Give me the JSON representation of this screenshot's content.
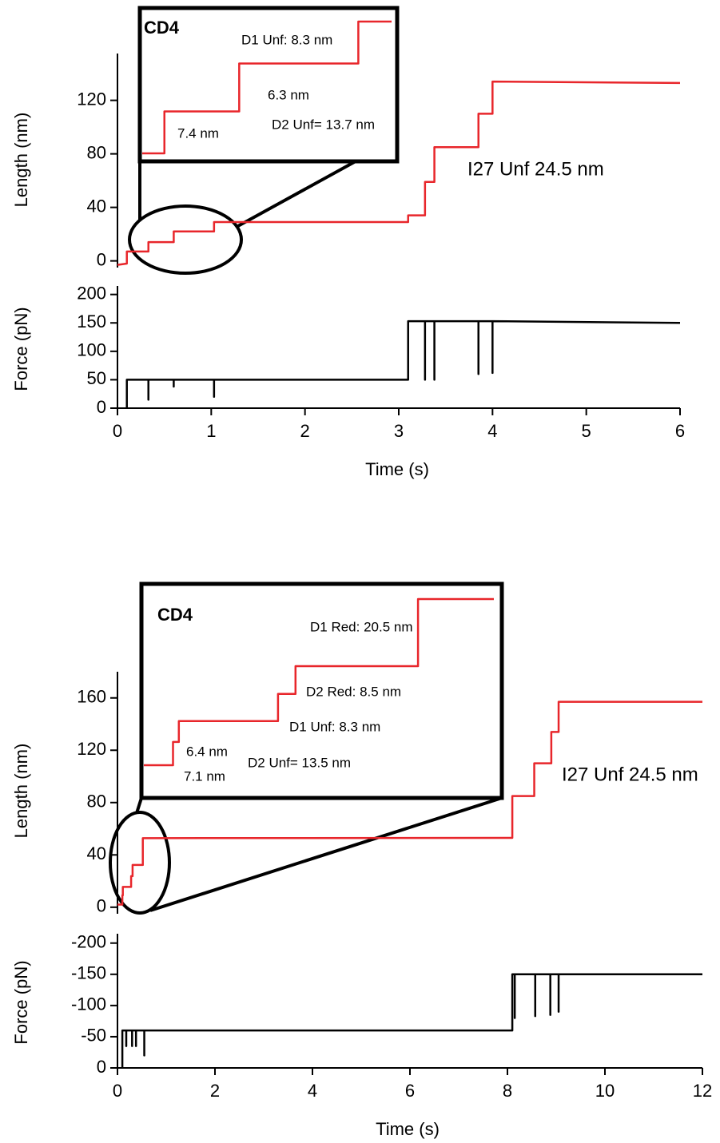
{
  "chart_data": [
    {
      "type": "line",
      "ylabel": "Length (nm)",
      "color": "#e8262b",
      "xlim": [
        0,
        6
      ],
      "ylim": [
        -5,
        155
      ],
      "yticks": [
        0,
        40,
        80,
        120
      ],
      "x": [
        0,
        0.1,
        0.1,
        0.33,
        0.33,
        0.6,
        0.6,
        1.03,
        1.03,
        3.1,
        3.1,
        3.28,
        3.28,
        3.38,
        3.38,
        3.85,
        3.85,
        4.0,
        4.0,
        6.0
      ],
      "values": [
        -3,
        -2,
        7,
        7,
        14,
        14,
        22,
        22,
        29,
        29,
        34,
        34,
        59,
        59,
        85,
        85,
        110,
        110,
        134,
        133
      ],
      "annotations": [
        "I27 Unf 24.5 nm"
      ],
      "inset": {
        "title": "CD4",
        "x": [
          0.25,
          0.33,
          0.33,
          0.6,
          0.6,
          1.03,
          1.03,
          1.15
        ],
        "values": [
          7,
          7,
          14,
          14,
          22,
          22,
          29,
          29
        ],
        "annotations": [
          "D1 Unf: 8.3 nm",
          "6.3 nm",
          "D2 Unf= 13.7 nm",
          "7.4 nm"
        ]
      }
    },
    {
      "type": "line",
      "ylabel": "Force (pN)",
      "xlabel": "Time (s)",
      "color": "#000000",
      "xlim": [
        0,
        6
      ],
      "xticks": [
        0,
        1,
        2,
        3,
        4,
        5,
        6
      ],
      "ylim": [
        0,
        215
      ],
      "yticks": [
        0,
        50,
        100,
        150,
        200
      ],
      "x": [
        0.1,
        0.1,
        0.33,
        0.33,
        0.33,
        0.6,
        0.6,
        0.6,
        1.03,
        1.03,
        1.03,
        3.1,
        3.1,
        3.28,
        3.28,
        3.28,
        3.38,
        3.38,
        3.38,
        3.85,
        3.85,
        3.85,
        4.0,
        4.0,
        4.0,
        6.0
      ],
      "values": [
        0,
        50,
        50,
        15,
        50,
        50,
        38,
        50,
        50,
        20,
        50,
        50,
        153,
        153,
        50,
        153,
        153,
        50,
        153,
        153,
        60,
        153,
        153,
        62,
        153,
        150
      ]
    },
    {
      "type": "line",
      "ylabel": "Length (nm)",
      "color": "#e8262b",
      "xlim": [
        0,
        12
      ],
      "ylim": [
        -5,
        180
      ],
      "yticks": [
        0,
        40,
        80,
        120,
        160
      ],
      "x": [
        0,
        0.1,
        0.1,
        0.11,
        0.11,
        0.28,
        0.28,
        0.31,
        0.31,
        0.52,
        0.52,
        8.1,
        8.1,
        8.55,
        8.55,
        8.9,
        8.9,
        9.05,
        9.05,
        12
      ],
      "values": [
        2,
        2,
        9.1,
        9.1,
        15.5,
        15.5,
        23.8,
        23.8,
        32.3,
        32.3,
        52.8,
        53,
        85,
        85,
        110,
        110,
        134,
        134,
        157,
        157
      ],
      "annotations": [
        "I27 Unf 24.5 nm"
      ],
      "inset": {
        "title": "CD4",
        "x": [
          0.05,
          0.1,
          0.1,
          0.11,
          0.11,
          0.28,
          0.28,
          0.31,
          0.31,
          0.52,
          0.52,
          0.65
        ],
        "values": [
          2,
          2,
          9.1,
          9.1,
          15.5,
          15.5,
          23.8,
          23.8,
          32.3,
          32.3,
          52.8,
          52.8
        ],
        "annotations": [
          "D1 Red: 20.5 nm",
          "D2 Red: 8.5 nm",
          "D1 Unf: 8.3 nm",
          "6.4 nm",
          "D2 Unf= 13.5 nm",
          "7.1 nm"
        ]
      }
    },
    {
      "type": "line",
      "ylabel": "Force (pN)",
      "xlabel": "Time (s)",
      "color": "#000000",
      "xlim": [
        0,
        12
      ],
      "xticks": [
        0,
        2,
        4,
        6,
        8,
        10,
        12
      ],
      "ylim": [
        0,
        -215
      ],
      "yticks": [
        0,
        -50,
        -100,
        -150,
        -200
      ],
      "x": [
        0.1,
        0.1,
        0.18,
        0.18,
        0.18,
        0.3,
        0.3,
        0.3,
        0.38,
        0.38,
        0.38,
        0.55,
        0.55,
        0.55,
        8.1,
        8.1,
        8.15,
        8.15,
        8.15,
        8.57,
        8.57,
        8.57,
        8.88,
        8.88,
        8.88,
        9.05,
        9.05,
        9.05,
        12
      ],
      "values": [
        0,
        -60,
        -60,
        -35,
        -60,
        -60,
        -35,
        -60,
        -60,
        -35,
        -60,
        -60,
        -20,
        -60,
        -60,
        -150,
        -150,
        -80,
        -150,
        -150,
        -83,
        -150,
        -150,
        -85,
        -150,
        -150,
        -90,
        -150,
        -150
      ]
    }
  ]
}
